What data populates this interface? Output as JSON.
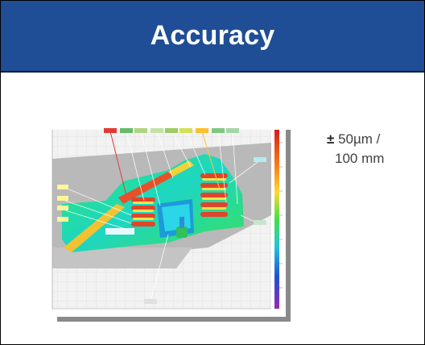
{
  "slide": {
    "title": "Accuracy",
    "spec": {
      "symbol": "±",
      "value": "50µm /",
      "per": "100 mm"
    }
  },
  "colors": {
    "header_bg": "#1f4e96",
    "text": "#404040"
  },
  "figure": {
    "description_icon": "deviation-heatmap-image"
  }
}
